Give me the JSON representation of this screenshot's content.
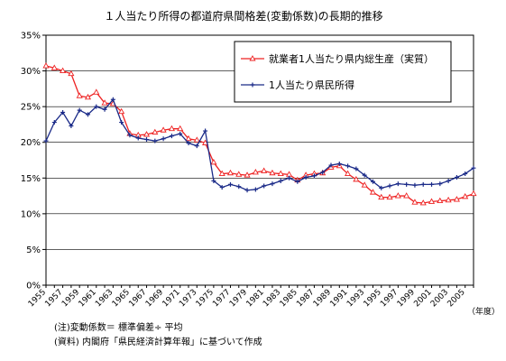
{
  "chart_data": {
    "type": "line",
    "title": "１人当たり所得の都道府県間格差(変動係数)の長期的推移",
    "xlabel": "（年度）",
    "ylabel": "",
    "ylim": [
      0,
      35
    ],
    "yticks": [
      "0%",
      "5%",
      "10%",
      "15%",
      "20%",
      "25%",
      "30%",
      "35%"
    ],
    "ytick_values": [
      0,
      5,
      10,
      15,
      20,
      25,
      30,
      35
    ],
    "x": [
      1955,
      1956,
      1957,
      1958,
      1959,
      1960,
      1961,
      1962,
      1963,
      1964,
      1965,
      1966,
      1967,
      1968,
      1969,
      1970,
      1971,
      1972,
      1973,
      1974,
      1975,
      1976,
      1977,
      1978,
      1979,
      1980,
      1981,
      1982,
      1983,
      1984,
      1985,
      1986,
      1987,
      1988,
      1989,
      1990,
      1991,
      1992,
      1993,
      1994,
      1995,
      1996,
      1997,
      1998,
      1999,
      2000,
      2001,
      2002,
      2003,
      2004,
      2005,
      2006
    ],
    "xticks": [
      "1955",
      "1957",
      "1959",
      "1961",
      "1963",
      "1965",
      "1967",
      "1969",
      "1971",
      "1973",
      "1975",
      "1977",
      "1979",
      "1981",
      "1983",
      "1985",
      "1987",
      "1989",
      "1991",
      "1993",
      "1995",
      "1997",
      "1999",
      "2001",
      "2003",
      "2005"
    ],
    "grid": true,
    "legend_position": "top-right",
    "series": [
      {
        "name": "就業者1人当たり県内総生産（実質）",
        "color": "#ee2222",
        "marker": "triangle",
        "values": [
          30.7,
          30.4,
          30.0,
          29.6,
          26.5,
          26.3,
          27.0,
          25.5,
          25.4,
          24.3,
          21.2,
          21.0,
          21.1,
          21.4,
          21.7,
          21.9,
          21.9,
          20.5,
          20.3,
          19.9,
          17.2,
          15.6,
          15.7,
          15.5,
          15.4,
          15.8,
          16.0,
          15.7,
          15.6,
          15.5,
          14.7,
          15.4,
          15.6,
          15.7,
          16.5,
          16.7,
          15.6,
          14.8,
          14.0,
          13.0,
          12.3,
          12.3,
          12.5,
          12.5,
          11.6,
          11.5,
          11.7,
          11.8,
          11.9,
          12.0,
          12.4,
          12.8
        ]
      },
      {
        "name": "1人当たり県民所得",
        "color": "#1a2a88",
        "marker": "plus",
        "values": [
          20.2,
          22.8,
          24.2,
          22.3,
          24.5,
          23.9,
          25.0,
          24.6,
          26.0,
          22.8,
          21.0,
          20.6,
          20.4,
          20.2,
          20.5,
          20.9,
          21.2,
          19.9,
          19.5,
          21.6,
          14.6,
          13.7,
          14.1,
          13.8,
          13.3,
          13.4,
          13.9,
          14.2,
          14.6,
          15.0,
          14.5,
          15.1,
          15.3,
          15.8,
          16.8,
          17.0,
          16.7,
          16.3,
          15.4,
          14.5,
          13.6,
          13.9,
          14.2,
          14.1,
          14.0,
          14.1,
          14.1,
          14.2,
          14.6,
          15.1,
          15.6,
          16.4
        ]
      }
    ]
  },
  "notes": [
    "(注)変動係数＝ 標準偏差÷ 平均",
    "(資料) 内閣府「県民経済計算年報」に基づいて作成"
  ]
}
